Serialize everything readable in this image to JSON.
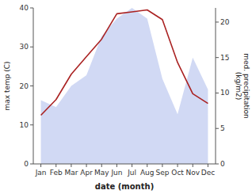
{
  "chart_data": {
    "type": "line",
    "categories": [
      "Jan",
      "Feb",
      "Mar",
      "Apr",
      "May",
      "Jun",
      "Jul",
      "Aug",
      "Sep",
      "Oct",
      "Nov",
      "Dec"
    ],
    "series": [
      {
        "type": "area",
        "axis": "y2",
        "color": "#b8c4ee",
        "values": [
          9.0,
          8.0,
          11.0,
          12.5,
          18.0,
          20.5,
          22.0,
          20.5,
          12.0,
          7.0,
          15.0,
          10.5
        ]
      },
      {
        "type": "line",
        "color": "#aa2222",
        "values": [
          12.5,
          16.5,
          23.0,
          27.5,
          32.0,
          38.5,
          39.0,
          39.5,
          37.0,
          26.0,
          18.0,
          15.5
        ]
      }
    ],
    "xlabel": "date (month)",
    "ylabel": "max temp (C)",
    "y2label": "med. precipitation\n(kg/m2)",
    "ylim": [
      0,
      40
    ],
    "yticks": [
      0,
      10,
      20,
      30,
      40
    ],
    "y2lim": [
      0,
      22
    ],
    "y2ticks": [
      0,
      5,
      10,
      15,
      20
    ],
    "grid": false
  }
}
